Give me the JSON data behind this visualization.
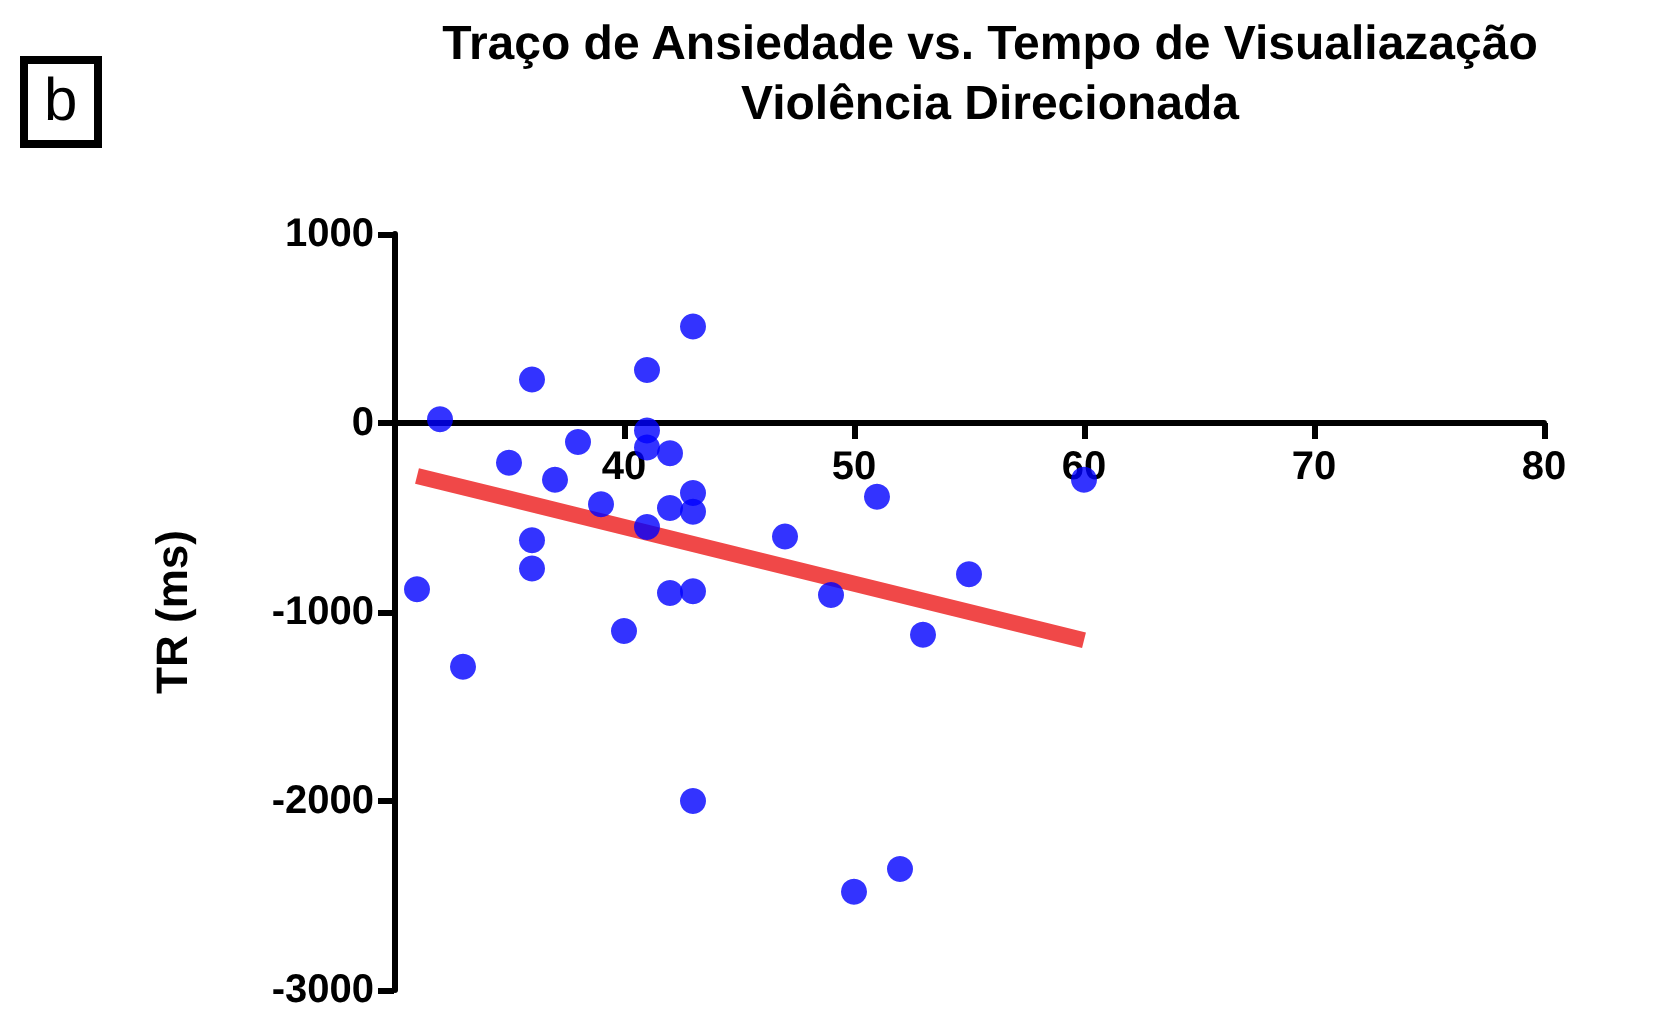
{
  "chart_data": {
    "type": "scatter",
    "title": "Traço de Ansiedade vs. Tempo de Visualiazação\nViolência Direcionada",
    "ylabel": "TR (ms)",
    "annotations": [
      "b"
    ],
    "xlim": [
      30,
      80
    ],
    "xticks": [
      40,
      50,
      60,
      70,
      80
    ],
    "ylim": [
      -3000,
      1000
    ],
    "yticks": [
      -3000,
      -2000,
      -1000,
      0,
      1000
    ],
    "grid": false,
    "series": [
      {
        "color": "#0000ff",
        "x": [
          32,
          36,
          41,
          43,
          41,
          41,
          42,
          38,
          35,
          37,
          39,
          42,
          43,
          43,
          41,
          36,
          36,
          31,
          42,
          43,
          40,
          33,
          47,
          51,
          60,
          49,
          55,
          53,
          43,
          50,
          52
        ],
        "values": [
          20,
          230,
          280,
          510,
          -40,
          -130,
          -160,
          -100,
          -210,
          -300,
          -430,
          -450,
          -370,
          -470,
          -550,
          -620,
          -770,
          -880,
          -900,
          -890,
          -1100,
          -1290,
          -600,
          -390,
          -300,
          -910,
          -800,
          -1120,
          -2000,
          -2480,
          -2360
        ]
      },
      {
        "type": "line",
        "color": "#f04848",
        "x": [
          31,
          60
        ],
        "values": [
          -280,
          -1150
        ]
      }
    ]
  }
}
